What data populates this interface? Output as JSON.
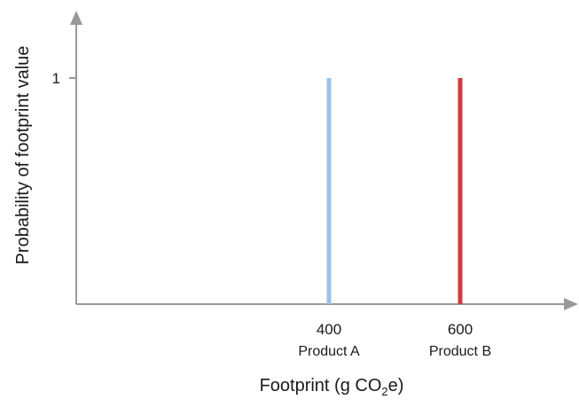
{
  "chart_data": {
    "type": "bar",
    "title": "",
    "xlabel": "Footprint (g CO",
    "xlabel_sub": "2",
    "xlabel_end": "e)",
    "ylabel": "Probability of footprint value",
    "y_ticks": [
      1
    ],
    "ylim": [
      0,
      1.2
    ],
    "xlim": [
      0,
      800
    ],
    "grid": false,
    "legend": "none",
    "points": [
      {
        "x": 400,
        "y": 1,
        "x_label": "400",
        "category": "Product A",
        "color": "#9bc3e6"
      },
      {
        "x": 600,
        "y": 1,
        "x_label": "600",
        "category": "Product B",
        "color": "#d0393f"
      }
    ],
    "axis_color": "#999999"
  }
}
